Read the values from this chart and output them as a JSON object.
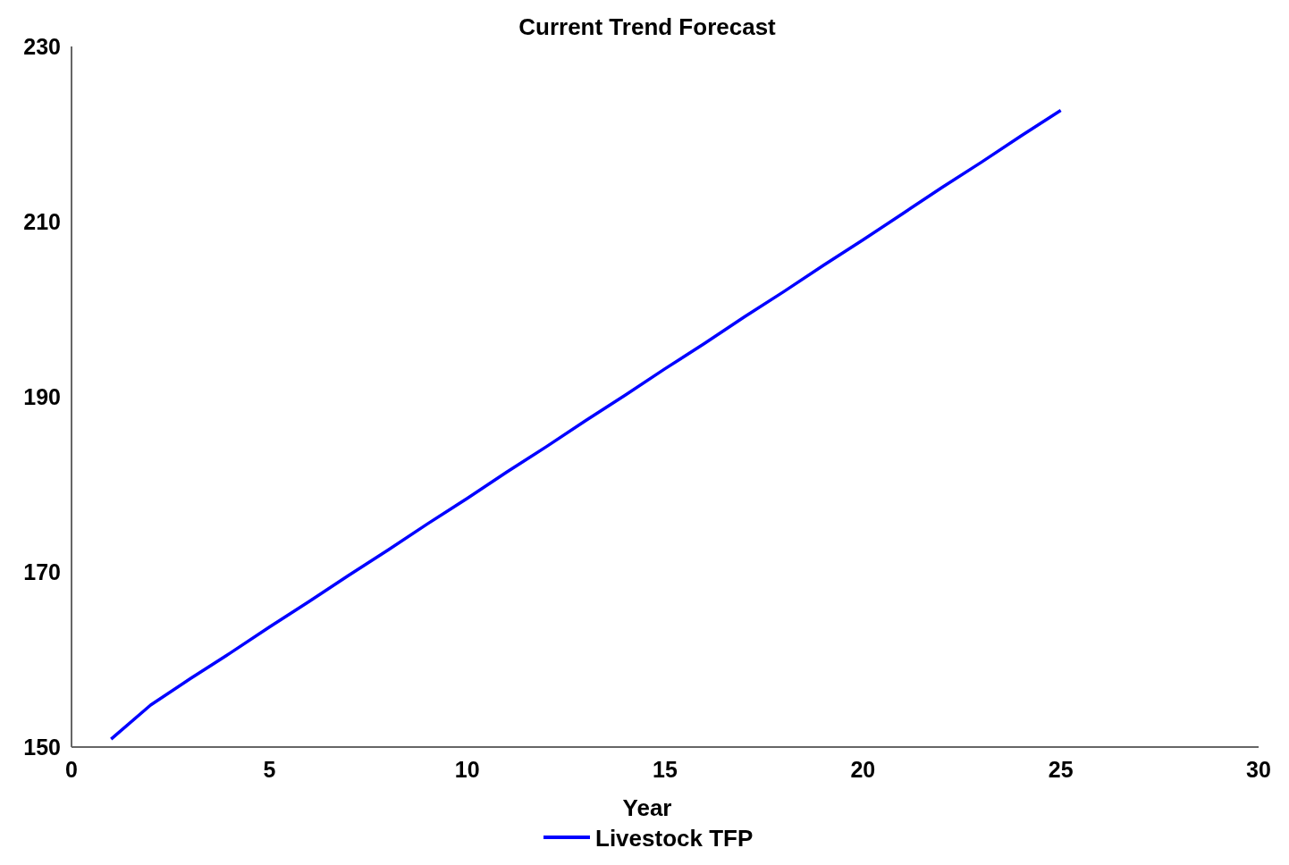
{
  "chart_data": {
    "type": "line",
    "title": "Current Trend Forecast",
    "xlabel": "Year",
    "x": [
      1,
      2,
      3,
      4,
      5,
      6,
      7,
      8,
      9,
      10,
      11,
      12,
      13,
      14,
      15,
      16,
      17,
      18,
      19,
      20,
      21,
      22,
      23,
      24,
      25
    ],
    "series": [
      {
        "name": "Livestock TFP",
        "color": "#0000ff",
        "values": [
          150.9,
          154.8,
          157.8,
          160.7,
          163.7,
          166.6,
          169.6,
          172.5,
          175.5,
          178.4,
          181.4,
          184.3,
          187.3,
          190.2,
          193.2,
          196.1,
          199.1,
          202.0,
          205.0,
          207.9,
          210.9,
          213.9,
          216.8,
          219.8,
          222.7
        ]
      }
    ],
    "xlim": [
      0,
      30
    ],
    "xticks": [
      0,
      5,
      10,
      15,
      20,
      25,
      30
    ],
    "ylim": [
      150,
      230
    ],
    "yticks": [
      150,
      170,
      190,
      210,
      230
    ],
    "grid": false,
    "legend": "bottom",
    "marker": "none",
    "line_style": "solid"
  }
}
